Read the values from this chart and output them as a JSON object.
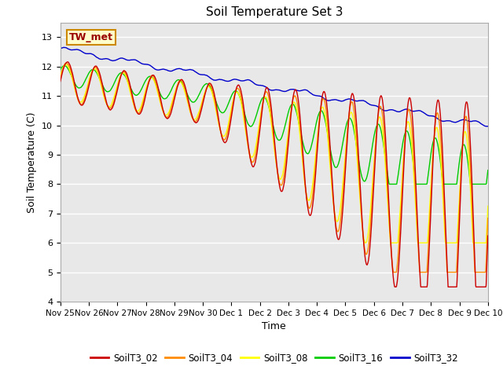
{
  "title": "Soil Temperature Set 3",
  "xlabel": "Time",
  "ylabel": "Soil Temperature (C)",
  "ylim": [
    4.0,
    13.5
  ],
  "yticks": [
    4.0,
    5.0,
    6.0,
    7.0,
    8.0,
    9.0,
    10.0,
    11.0,
    12.0,
    13.0
  ],
  "x_tick_labels": [
    "Nov 25",
    "Nov 26",
    "Nov 27",
    "Nov 28",
    "Nov 29",
    "Nov 30",
    "Dec 1",
    "Dec 2",
    "Dec 3",
    "Dec 4",
    "Dec 5",
    "Dec 6",
    "Dec 7",
    "Dec 8",
    "Dec 9",
    "Dec 10"
  ],
  "series_colors": {
    "SoilT3_02": "#cc0000",
    "SoilT3_04": "#ff8c00",
    "SoilT3_08": "#ffff00",
    "SoilT3_16": "#00cc00",
    "SoilT3_32": "#0000cc"
  },
  "legend_label": "TW_met",
  "legend_box_facecolor": "#ffffcc",
  "legend_box_edgecolor": "#cc8800",
  "plot_bg_color": "#e8e8e8",
  "grid_color": "#ffffff",
  "fig_bg_color": "#ffffff",
  "n_points": 1440,
  "days": 15
}
